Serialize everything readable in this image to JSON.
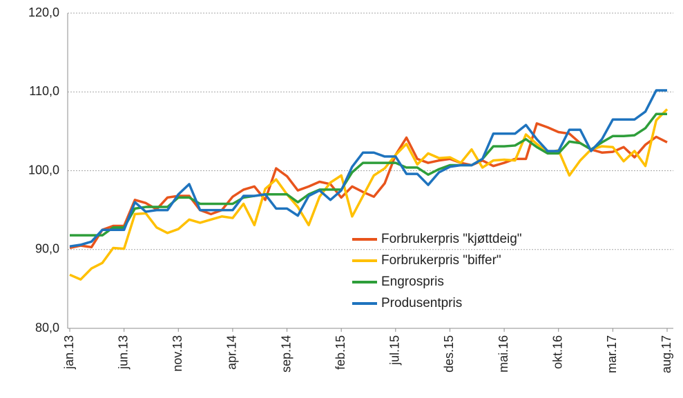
{
  "chart_data": {
    "type": "line",
    "categories": [
      "jan.13",
      null,
      null,
      null,
      null,
      "jun.13",
      null,
      null,
      null,
      null,
      "nov.13",
      null,
      null,
      null,
      null,
      "apr.14",
      null,
      null,
      null,
      null,
      "sep.14",
      null,
      null,
      null,
      null,
      "feb.15",
      null,
      null,
      null,
      null,
      "jul.15",
      null,
      null,
      null,
      null,
      "des.15",
      null,
      null,
      null,
      null,
      "mai.16",
      null,
      null,
      null,
      null,
      "okt.16",
      null,
      null,
      null,
      null,
      "mar.17",
      null,
      null,
      null,
      null,
      "aug.17"
    ],
    "series": [
      {
        "name": "Forbrukerpris \"kjøttdeig\"",
        "color": "#e8541c",
        "values": [
          90.2,
          90.5,
          90.3,
          92.5,
          93,
          93,
          96.3,
          95.9,
          95.1,
          96.6,
          96.8,
          96.8,
          95,
          94.5,
          95,
          96.7,
          97.6,
          98,
          96.3,
          100.3,
          99.3,
          97.5,
          98,
          98.6,
          98.3,
          96.6,
          98,
          97.3,
          96.7,
          98.4,
          102,
          104.2,
          101.5,
          101,
          101.3,
          101.5,
          101,
          100.7,
          101.3,
          100.6,
          101,
          101.5,
          101.5,
          106,
          105.5,
          104.9,
          104.7,
          103.5,
          102.7,
          102.3,
          102.4,
          103,
          101.7,
          103.3,
          104.3,
          103.6
        ]
      },
      {
        "name": "Forbrukerpris \"biffer\"",
        "color": "#ffc000",
        "values": [
          86.8,
          86.2,
          87.6,
          88.3,
          90.2,
          90.1,
          94.5,
          94.6,
          92.8,
          92.1,
          92.6,
          93.8,
          93.4,
          93.8,
          94.2,
          94,
          95.8,
          93.1,
          97.7,
          98.9,
          97,
          95.4,
          93.1,
          96.7,
          98.5,
          99.4,
          94.2,
          96.8,
          99.4,
          100.3,
          102,
          103.4,
          100.8,
          102.2,
          101.6,
          101.7,
          101,
          102.7,
          100.4,
          101.3,
          101.4,
          101.3,
          104.6,
          103.4,
          102.3,
          102.6,
          99.4,
          101.3,
          102.7,
          103.1,
          103,
          101.2,
          102.5,
          100.6,
          106.4,
          107.8
        ]
      },
      {
        "name": "Engrospris",
        "color": "#2e9e3a",
        "values": [
          91.8,
          91.8,
          91.8,
          91.8,
          92.8,
          92.8,
          95.2,
          95.4,
          95.4,
          95.4,
          96.6,
          96.6,
          95.8,
          95.8,
          95.8,
          95.8,
          96.6,
          96.8,
          97,
          97,
          97,
          96,
          97,
          97.6,
          97.6,
          97.6,
          99.8,
          101,
          101,
          101,
          101,
          100.4,
          100.4,
          99.5,
          100.2,
          100.7,
          100.7,
          100.7,
          101.5,
          103.1,
          103.1,
          103.2,
          104,
          103,
          102.2,
          102.2,
          103.7,
          103.5,
          102.7,
          103.6,
          104.4,
          104.4,
          104.5,
          105.4,
          107.2,
          107.2
        ]
      },
      {
        "name": "Produsentpris",
        "color": "#1e73be",
        "values": [
          90.4,
          90.6,
          91,
          92.5,
          92.5,
          92.5,
          96,
          94.8,
          95,
          95,
          97,
          98.3,
          95,
          95,
          95,
          95,
          96.8,
          96.8,
          97,
          95.2,
          95.2,
          94.3,
          96.8,
          97.5,
          96.3,
          97.5,
          100.5,
          102.3,
          102.3,
          101.8,
          101.8,
          99.6,
          99.6,
          98.2,
          99.8,
          100.5,
          100.7,
          100.7,
          101.5,
          104.7,
          104.7,
          104.7,
          105.8,
          104,
          102.5,
          102.5,
          105.2,
          105.2,
          102.5,
          104,
          106.5,
          106.5,
          106.5,
          107.5,
          110.2,
          110.2
        ]
      }
    ],
    "ylim": [
      80,
      120
    ],
    "yticks": [
      {
        "value": 80,
        "label": "80,0"
      },
      {
        "value": 90,
        "label": "90,0"
      },
      {
        "value": 100,
        "label": "100,0"
      },
      {
        "value": 110,
        "label": "110,0"
      },
      {
        "value": 120,
        "label": "120,0"
      }
    ],
    "grid": true,
    "legend": "lower right"
  }
}
